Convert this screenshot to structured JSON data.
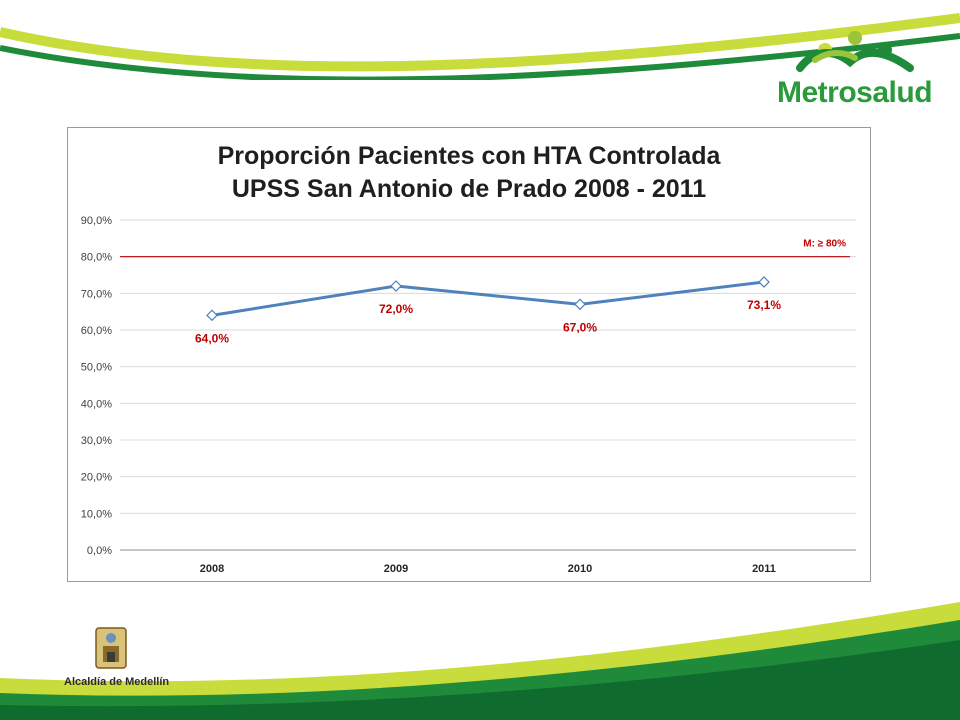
{
  "brand": {
    "name": "Metrosalud",
    "icon": "metrosalud-people-logo-icon"
  },
  "footer": {
    "city": "Alcaldía de Medellín",
    "icon": "coat-of-arms-icon"
  },
  "colors": {
    "series_line": "#4f81bd",
    "label_red": "#c00000",
    "meta_line": "#c00000",
    "green_dark": "#1e8a3a",
    "green_light": "#c8dc3c"
  },
  "chart_data": {
    "type": "line",
    "title_line1": "Proporción Pacientes con HTA Controlada",
    "title_line2": "UPSS San Antonio de Prado 2008 - 2011",
    "categories": [
      "2008",
      "2009",
      "2010",
      "2011"
    ],
    "series": [
      {
        "values": [
          64.0,
          72.0,
          67.0,
          73.1
        ],
        "data_labels": [
          "64,0%",
          "72,0%",
          "67,0%",
          "73,1%"
        ]
      }
    ],
    "yticks": [
      "0,0%",
      "10,0%",
      "20,0%",
      "30,0%",
      "40,0%",
      "50,0%",
      "60,0%",
      "70,0%",
      "80,0%",
      "90,0%"
    ],
    "ylim": [
      0,
      90
    ],
    "reference_line": {
      "value": 80,
      "label": "M: ≥ 80%"
    },
    "grid": true,
    "legend": "none"
  }
}
